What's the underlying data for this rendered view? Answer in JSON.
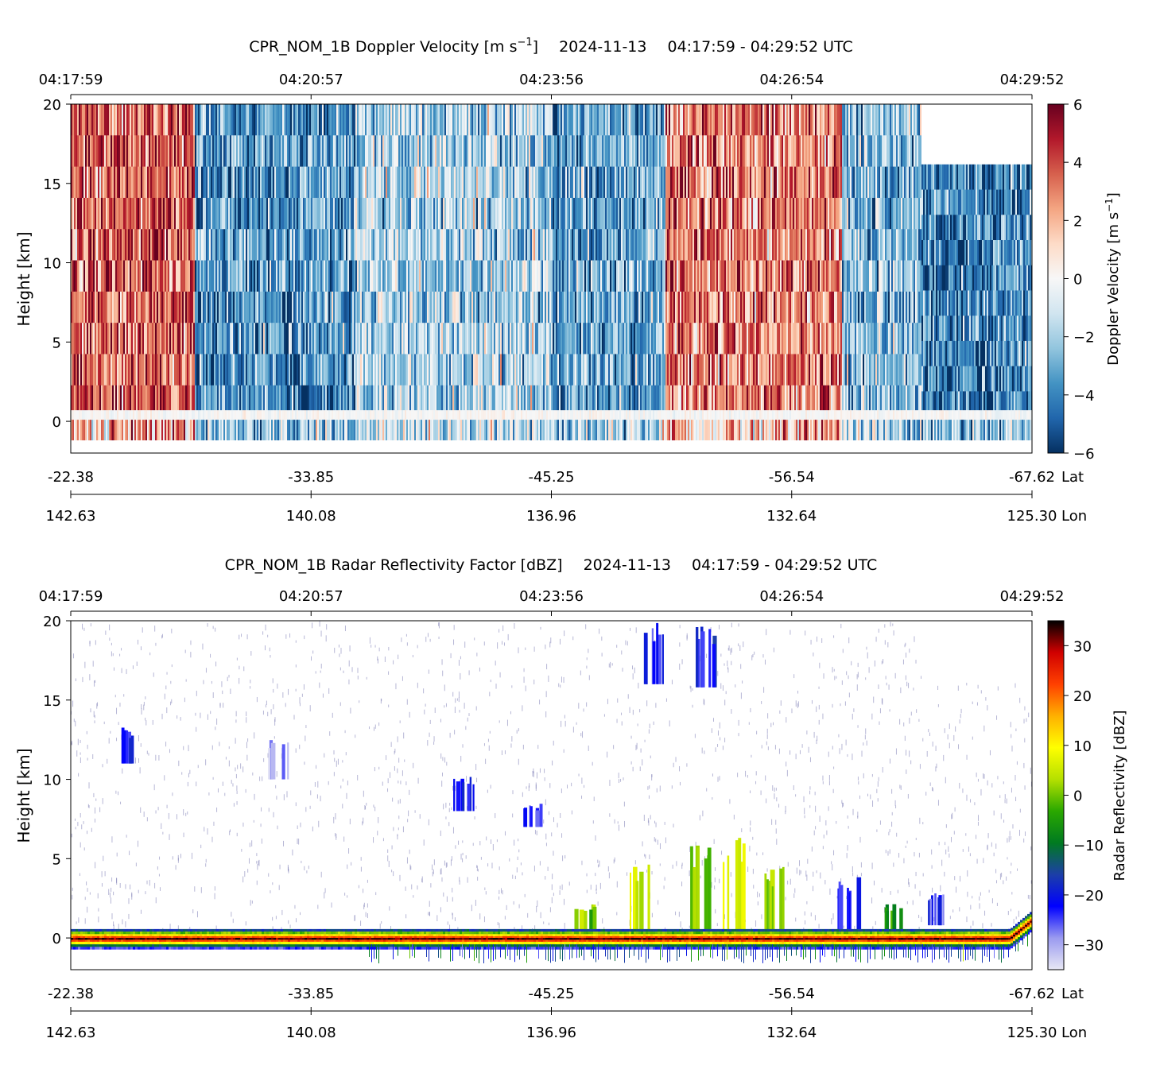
{
  "chart_data": [
    {
      "type": "heatmap",
      "title_main": "CPR_NOM_1B Doppler Velocity [m s",
      "title_unit_sup": "−1",
      "title_unit_close": "]",
      "title_date": "2024-11-13",
      "title_range": "04:17:59 - 04:29:52 UTC",
      "ylabel": "Height [km]",
      "ylim": [
        -2,
        20
      ],
      "yticks": [
        "0",
        "5",
        "10",
        "15",
        "20"
      ],
      "time_ticks": [
        "04:17:59",
        "04:20:57",
        "04:23:56",
        "04:26:54",
        "04:29:52"
      ],
      "lat_ticks": [
        "-22.38",
        "-33.85",
        "-45.25",
        "-56.54",
        "-67.62"
      ],
      "lat_label": "Lat",
      "lon_ticks": [
        "142.63",
        "140.08",
        "136.96",
        "132.64",
        "125.30"
      ],
      "lon_label": "Lon",
      "colorbar": {
        "label": "Doppler Velocity [m s",
        "label_sup": "−1",
        "label_close": "]",
        "range": [
          -6,
          6
        ],
        "ticks": [
          "6",
          "4",
          "2",
          "0",
          "−2",
          "−4",
          "−6"
        ],
        "colormap": "RdBu_r",
        "colors": [
          "#053061",
          "#2166ac",
          "#4393c3",
          "#92c5de",
          "#d1e5f0",
          "#f7f7f7",
          "#fddbc7",
          "#f4a582",
          "#d6604d",
          "#b2182b",
          "#67001f"
        ]
      },
      "signal_top_km_after_break": 16.2,
      "mean_velocity_segments": [
        {
          "time_start": "04:17:59",
          "time_end": "04:19:30",
          "mean_velocity": 3.5
        },
        {
          "time_start": "04:19:30",
          "time_end": "04:21:30",
          "mean_velocity": -3.5
        },
        {
          "time_start": "04:21:30",
          "time_end": "04:23:56",
          "mean_velocity": -1.8
        },
        {
          "time_start": "04:24:05",
          "time_end": "04:25:20",
          "mean_velocity": -3.0
        },
        {
          "time_start": "04:25:20",
          "time_end": "04:27:30",
          "mean_velocity": 3.0
        },
        {
          "time_start": "04:27:30",
          "time_end": "04:28:30",
          "mean_velocity": -2.5
        },
        {
          "time_start": "04:28:30",
          "time_end": "04:29:52",
          "mean_velocity": -4.0
        }
      ]
    },
    {
      "type": "heatmap",
      "title_main": "CPR_NOM_1B Radar Reflectivity Factor [dBZ]",
      "title_date": "2024-11-13",
      "title_range": "04:17:59 - 04:29:52 UTC",
      "ylabel": "Height [km]",
      "ylim": [
        -2,
        20
      ],
      "yticks": [
        "0",
        "5",
        "10",
        "15",
        "20"
      ],
      "time_ticks": [
        "04:17:59",
        "04:20:57",
        "04:23:56",
        "04:26:54",
        "04:29:52"
      ],
      "lat_ticks": [
        "-22.38",
        "-33.85",
        "-45.25",
        "-56.54",
        "-67.62"
      ],
      "lat_label": "Lat",
      "lon_ticks": [
        "142.63",
        "140.08",
        "136.96",
        "132.64",
        "125.30"
      ],
      "lon_label": "Lon",
      "colorbar": {
        "label": "Radar Reflectivity [dBZ]",
        "range": [
          -35,
          35
        ],
        "ticks": [
          "30",
          "20",
          "10",
          "0",
          "−10",
          "−20",
          "−30"
        ],
        "colormap": "radar reflectivity",
        "colors": [
          "#e8e8f4",
          "#9a9af0",
          "#0000ff",
          "#1c3fa8",
          "#007a20",
          "#2aa800",
          "#b5e000",
          "#ffff00",
          "#ffb000",
          "#ff4000",
          "#d00000",
          "#000000"
        ]
      },
      "surface_height_km": 0,
      "clouds": [
        {
          "time": "04:18:40",
          "base_km": 11.0,
          "top_km": 13.3,
          "dbz": -22
        },
        {
          "time": "04:20:33",
          "base_km": 10.0,
          "top_km": 12.5,
          "dbz": -28
        },
        {
          "time": "04:22:50",
          "base_km": 8.0,
          "top_km": 10.5,
          "dbz": -22
        },
        {
          "time": "04:23:40",
          "base_km": 7.0,
          "top_km": 8.5,
          "dbz": -25
        },
        {
          "time": "04:25:10",
          "base_km": 16.0,
          "top_km": 20.0,
          "dbz": -22
        },
        {
          "time": "04:25:50",
          "base_km": 15.8,
          "top_km": 20.0,
          "dbz": -20
        },
        {
          "time": "04:24:20",
          "base_km": 0.2,
          "top_km": 2.2,
          "dbz": 0
        },
        {
          "time": "04:25:00",
          "base_km": 0.2,
          "top_km": 5.2,
          "dbz": 5
        },
        {
          "time": "04:25:45",
          "base_km": 0.2,
          "top_km": 6.0,
          "dbz": 0
        },
        {
          "time": "04:26:10",
          "base_km": 0.2,
          "top_km": 6.4,
          "dbz": 8
        },
        {
          "time": "04:26:40",
          "base_km": 0.2,
          "top_km": 4.5,
          "dbz": 0
        },
        {
          "time": "04:27:35",
          "base_km": 0.2,
          "top_km": 4.0,
          "dbz": -22
        },
        {
          "time": "04:28:10",
          "base_km": 0.2,
          "top_km": 2.2,
          "dbz": -5
        },
        {
          "time": "04:28:40",
          "base_km": 0.8,
          "top_km": 3.0,
          "dbz": -25
        }
      ]
    }
  ]
}
